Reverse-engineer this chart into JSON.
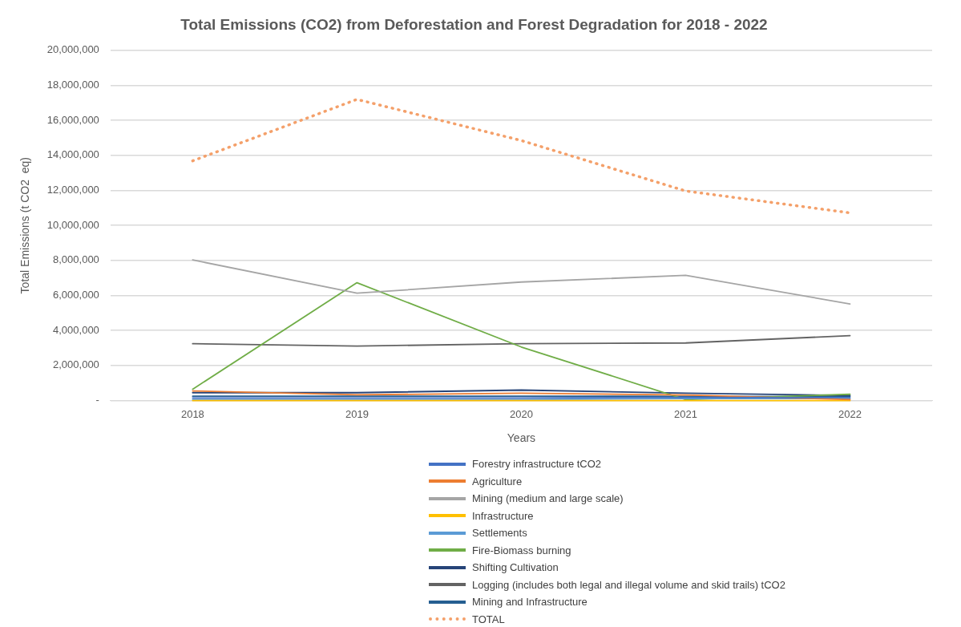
{
  "chart_data": {
    "type": "line",
    "title": "Total Emissions (CO2) from Deforestation and Forest Degradation for 2018 - 2022",
    "xlabel": "Years",
    "ylabel": "Total Emissions (t CO2  eq)",
    "categories": [
      "2018",
      "2019",
      "2020",
      "2021",
      "2022"
    ],
    "series": [
      {
        "name": "Forestry infrastructure tCO2",
        "color": "#4472c4",
        "values": [
          150000,
          150000,
          150000,
          180000,
          170000
        ]
      },
      {
        "name": "Agriculture",
        "color": "#ed7d31",
        "values": [
          550000,
          330000,
          420000,
          320000,
          55000
        ]
      },
      {
        "name": "Mining (medium and large scale)",
        "color": "#a5a5a5",
        "values": [
          8030000,
          6130000,
          6770000,
          7150000,
          5520000
        ]
      },
      {
        "name": "Infrastructure",
        "color": "#ffc000",
        "values": [
          0,
          0,
          0,
          0,
          0
        ]
      },
      {
        "name": "Settlements",
        "color": "#5b9bd5",
        "values": [
          60000,
          60000,
          60000,
          120000,
          110000
        ]
      },
      {
        "name": "Fire-Biomass burning",
        "color": "#70ad47",
        "values": [
          650000,
          6730000,
          3060000,
          60000,
          360000
        ]
      },
      {
        "name": "Shifting Cultivation",
        "color": "#264478",
        "values": [
          450000,
          450000,
          600000,
          420000,
          290000
        ]
      },
      {
        "name": "Logging (includes both legal and illegal volume and skid trails) tCO2",
        "color": "#636363",
        "values": [
          3250000,
          3110000,
          3250000,
          3290000,
          3710000
        ]
      },
      {
        "name": "Mining and Infrastructure",
        "color": "#255e91",
        "values": [
          250000,
          250000,
          250000,
          240000,
          230000
        ]
      },
      {
        "name": "TOTAL",
        "color": "#f4a06a",
        "values": [
          13690000,
          17200000,
          14850000,
          11970000,
          10720000
        ],
        "line_style": "dotted"
      }
    ],
    "ylim": [
      0,
      20000000
    ],
    "yticks": [
      {
        "value": 0,
        "label": "-"
      },
      {
        "value": 2000000,
        "label": "2,000,000"
      },
      {
        "value": 4000000,
        "label": "4,000,000"
      },
      {
        "value": 6000000,
        "label": "6,000,000"
      },
      {
        "value": 8000000,
        "label": "8,000,000"
      },
      {
        "value": 10000000,
        "label": "10,000,000"
      },
      {
        "value": 12000000,
        "label": "12,000,000"
      },
      {
        "value": 14000000,
        "label": "14,000,000"
      },
      {
        "value": 16000000,
        "label": "16,000,000"
      },
      {
        "value": 18000000,
        "label": "18,000,000"
      },
      {
        "value": 20000000,
        "label": "20,000,000"
      }
    ],
    "grid": "y",
    "legend": "bottom",
    "marker": "none"
  }
}
